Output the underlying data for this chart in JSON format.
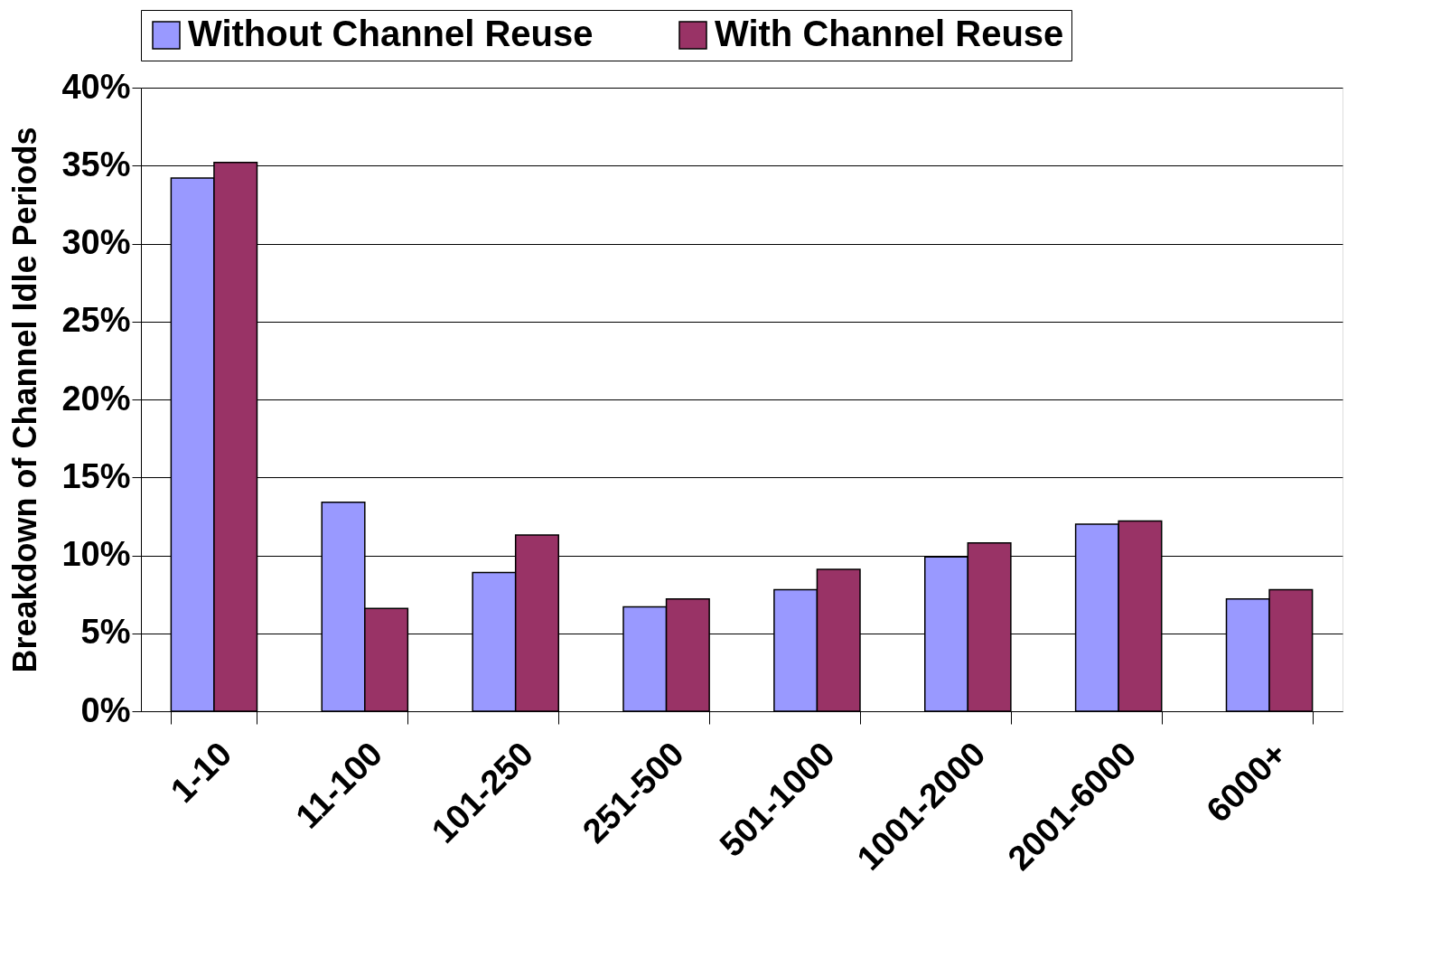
{
  "chart_data": {
    "type": "bar",
    "ylabel": "Breakdown of Channel Idle Periods",
    "categories": [
      "1-10",
      "11-100",
      "101-250",
      "251-500",
      "501-1000",
      "1001-2000",
      "2001-6000",
      "6000+"
    ],
    "series": [
      {
        "name": "Without Channel Reuse",
        "color": "#9999ff",
        "values": [
          34.2,
          13.4,
          8.9,
          6.7,
          7.8,
          9.9,
          12.0,
          7.2
        ]
      },
      {
        "name": "With Channel Reuse",
        "color": "#993366",
        "values": [
          35.2,
          6.6,
          11.3,
          7.2,
          9.1,
          10.8,
          12.2,
          7.8
        ]
      }
    ],
    "ylim": [
      0,
      40
    ],
    "yticks": [
      {
        "value": 0,
        "label": "0%"
      },
      {
        "value": 5,
        "label": "5%"
      },
      {
        "value": 10,
        "label": "10%"
      },
      {
        "value": 15,
        "label": "15%"
      },
      {
        "value": 20,
        "label": "20%"
      },
      {
        "value": 25,
        "label": "25%"
      },
      {
        "value": 30,
        "label": "30%"
      },
      {
        "value": 35,
        "label": "35%"
      },
      {
        "value": 40,
        "label": "40%"
      }
    ],
    "grid": "y",
    "legend": "top"
  }
}
